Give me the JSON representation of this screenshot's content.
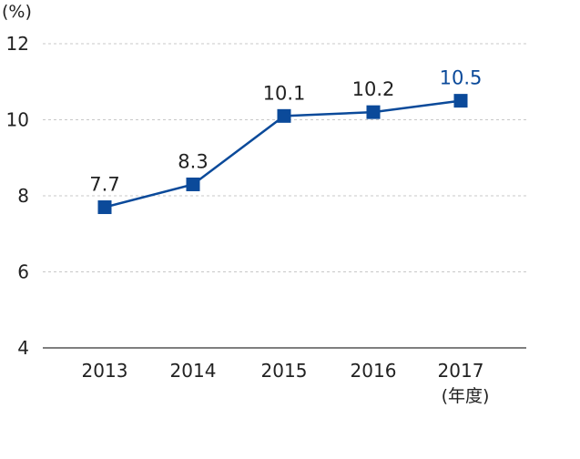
{
  "chart_data": {
    "type": "line",
    "y_unit_label": "(%)",
    "x_unit_label": "(年度)",
    "categories": [
      "2013",
      "2014",
      "2015",
      "2016",
      "2017"
    ],
    "series": [
      {
        "values": [
          7.7,
          8.3,
          10.1,
          10.2,
          10.5
        ],
        "data_labels": [
          "7.7",
          "8.3",
          "10.1",
          "10.2",
          "10.5"
        ]
      }
    ],
    "ylim": [
      4,
      12
    ],
    "yticks": [
      "4",
      "6",
      "8",
      "10",
      "12"
    ],
    "grid": true,
    "colors": {
      "series": "#0b4a9a",
      "highlight_label": "#0b4a9a",
      "grid": "#c8c8c8",
      "axis": "#333333"
    }
  }
}
